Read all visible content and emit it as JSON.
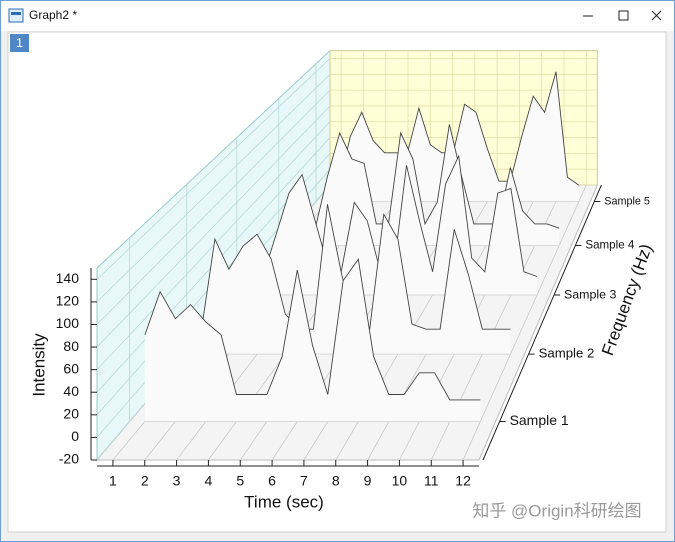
{
  "window": {
    "title": "Graph2 *"
  },
  "layer_tab": "1",
  "watermark": "知乎 @Origin科研绘图",
  "chart_data": {
    "type": "waterfall",
    "x_label": "Time (sec)",
    "y_label": "Intensity",
    "z_label": "Frequency (Hz)",
    "x": [
      1,
      1.5,
      2,
      2.5,
      3,
      3.5,
      4,
      4.5,
      5,
      5.5,
      6,
      6.5,
      7,
      7.5,
      8,
      8.5,
      9,
      9.5,
      10,
      10.5,
      11,
      11.5,
      12
    ],
    "xlim": [
      0.5,
      12.5
    ],
    "xticks": [
      1,
      2,
      3,
      4,
      5,
      6,
      7,
      8,
      9,
      10,
      11,
      12
    ],
    "ylim": [
      -20,
      150
    ],
    "yticks": [
      -20,
      0,
      20,
      40,
      60,
      80,
      100,
      120,
      140
    ],
    "grid": true,
    "series": [
      {
        "name": "Sample 1",
        "values": [
          60,
          100,
          75,
          88,
          72,
          60,
          5,
          5,
          5,
          40,
          120,
          50,
          5,
          110,
          130,
          40,
          5,
          5,
          25,
          25,
          0,
          0,
          0
        ]
      },
      {
        "name": "Sample 2",
        "values": [
          0,
          95,
          65,
          88,
          100,
          75,
          20,
          5,
          5,
          130,
          60,
          5,
          5,
          120,
          95,
          10,
          5,
          5,
          105,
          60,
          5,
          5,
          5
        ]
      },
      {
        "name": "Sample 3",
        "values": [
          0,
          0,
          45,
          90,
          110,
          60,
          10,
          5,
          80,
          60,
          5,
          5,
          120,
          60,
          5,
          100,
          130,
          20,
          5,
          90,
          95,
          5,
          0
        ]
      },
      {
        "name": "Sample 4",
        "values": [
          0,
          0,
          0,
          60,
          110,
          80,
          75,
          5,
          5,
          110,
          80,
          5,
          30,
          120,
          60,
          5,
          5,
          5,
          70,
          20,
          5,
          5,
          0
        ]
      },
      {
        "name": "Sample 5",
        "values": [
          0,
          0,
          60,
          90,
          55,
          40,
          40,
          40,
          95,
          50,
          40,
          40,
          100,
          90,
          45,
          5,
          5,
          60,
          110,
          90,
          140,
          10,
          0
        ]
      }
    ]
  }
}
